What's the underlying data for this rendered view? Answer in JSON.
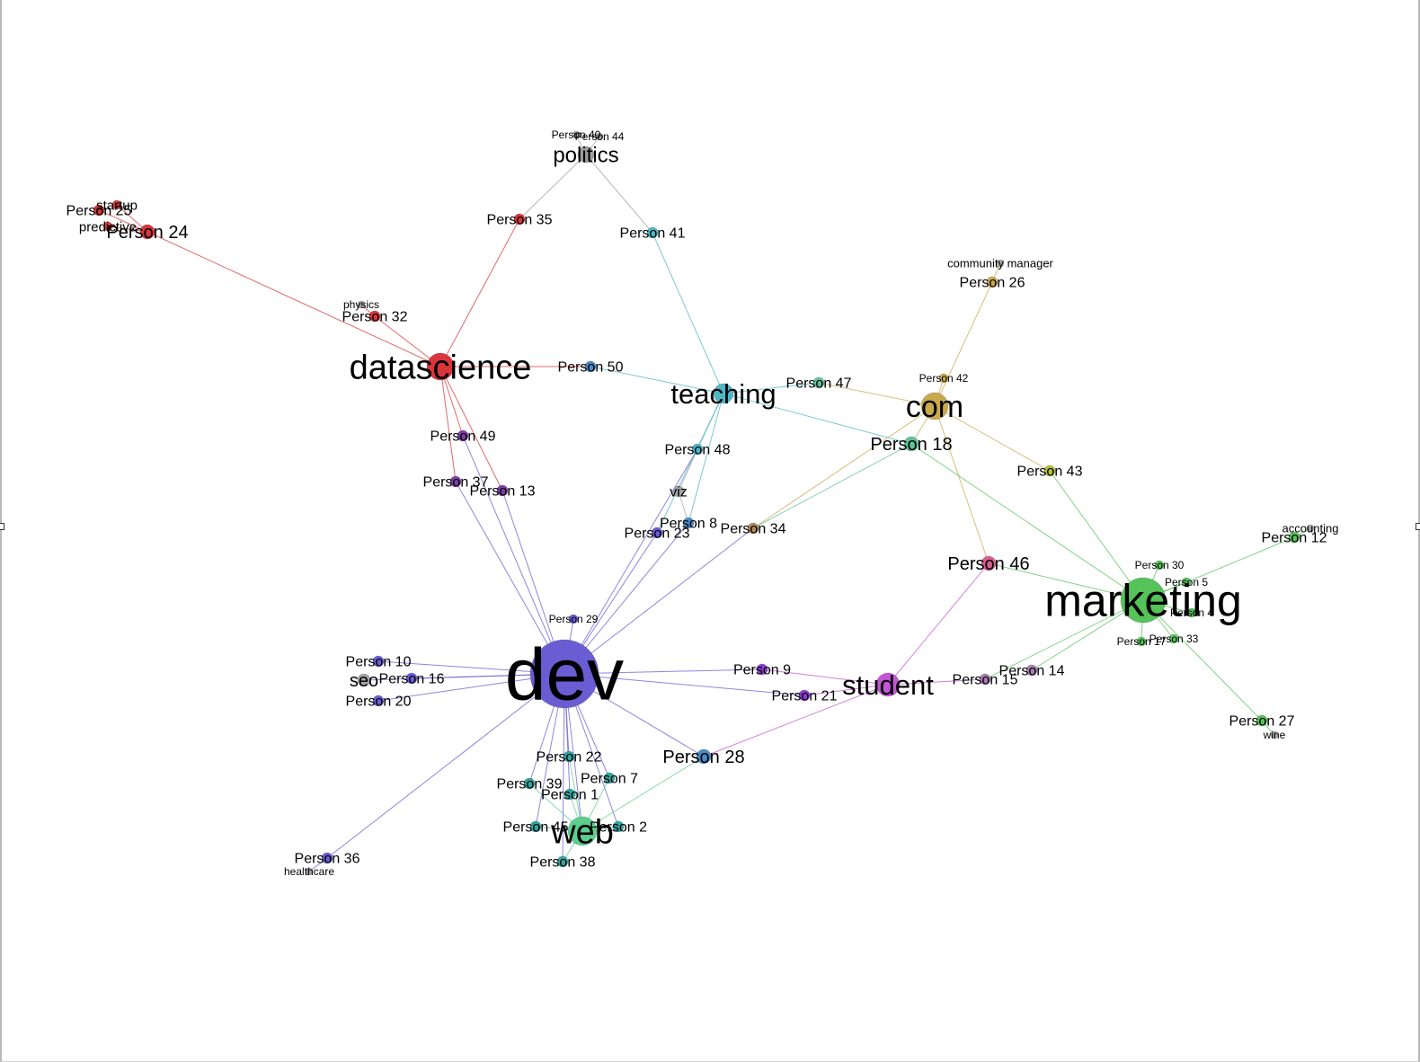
{
  "colors": {
    "dev": "#6a5cd3",
    "datascience": "#d9363b",
    "marketing": "#55c35a",
    "com": "#c8a94c",
    "teaching": "#4fb6c6",
    "student": "#c455d6",
    "web": "#5ccf8f",
    "politics": "#9e9e9e",
    "gray": "#a6a6a6",
    "purple": "#7d3fa8",
    "teal": "#2fa6a0",
    "steelblue": "#4a8bc9",
    "olive": "#b6c33a",
    "pink": "#d95f8e",
    "mauve": "#a77fb0",
    "tan": "#b08a5c",
    "seagreen": "#5fc49a",
    "violet": "#8d3ad1"
  },
  "nodes": [
    {
      "id": "dev",
      "label": "dev",
      "color": "dev"
    },
    {
      "id": "datascience",
      "label": "datascience",
      "color": "datascience"
    },
    {
      "id": "marketing",
      "label": "marketing",
      "color": "marketing"
    },
    {
      "id": "com",
      "label": "com",
      "color": "com"
    },
    {
      "id": "teaching",
      "label": "teaching",
      "color": "teaching"
    },
    {
      "id": "student",
      "label": "student",
      "color": "student"
    },
    {
      "id": "web",
      "label": "web",
      "color": "web"
    },
    {
      "id": "politics",
      "label": "politics",
      "color": "politics"
    },
    {
      "id": "seo",
      "label": "seo",
      "color": "gray"
    },
    {
      "id": "viz",
      "label": "viz",
      "color": "gray"
    },
    {
      "id": "startup",
      "label": "startup",
      "color": "datascience"
    },
    {
      "id": "predictive",
      "label": "predictive",
      "color": "datascience"
    },
    {
      "id": "physics",
      "label": "physics",
      "color": "gray"
    },
    {
      "id": "community_manager",
      "label": "community manager",
      "color": "gray"
    },
    {
      "id": "accounting",
      "label": "accounting",
      "color": "gray"
    },
    {
      "id": "wine",
      "label": "wine",
      "color": "gray"
    },
    {
      "id": "healthcare",
      "label": "healthcare",
      "color": "gray"
    },
    {
      "id": "p1",
      "label": "Person 1",
      "color": "teal"
    },
    {
      "id": "p2",
      "label": "Person 2",
      "color": "teal"
    },
    {
      "id": "p4",
      "label": "Person 4",
      "color": "marketing"
    },
    {
      "id": "p5",
      "label": "Person 5",
      "color": "marketing"
    },
    {
      "id": "p7",
      "label": "Person 7",
      "color": "teal"
    },
    {
      "id": "p8",
      "label": "Person 8",
      "color": "steelblue"
    },
    {
      "id": "p9",
      "label": "Person 9",
      "color": "violet"
    },
    {
      "id": "p10",
      "label": "Person 10",
      "color": "dev"
    },
    {
      "id": "p12",
      "label": "Person 12",
      "color": "marketing"
    },
    {
      "id": "p13",
      "label": "Person 13",
      "color": "purple"
    },
    {
      "id": "p14",
      "label": "Person 14",
      "color": "mauve"
    },
    {
      "id": "p15",
      "label": "Person 15",
      "color": "mauve"
    },
    {
      "id": "p16",
      "label": "Person 16",
      "color": "dev"
    },
    {
      "id": "p17",
      "label": "Person 17",
      "color": "marketing"
    },
    {
      "id": "p18",
      "label": "Person 18",
      "color": "seagreen"
    },
    {
      "id": "p20",
      "label": "Person 20",
      "color": "dev"
    },
    {
      "id": "p21",
      "label": "Person 21",
      "color": "violet"
    },
    {
      "id": "p22",
      "label": "Person 22",
      "color": "teal"
    },
    {
      "id": "p23",
      "label": "Person 23",
      "color": "dev"
    },
    {
      "id": "p24",
      "label": "Person 24",
      "color": "datascience"
    },
    {
      "id": "p25",
      "label": "Person 25",
      "color": "datascience"
    },
    {
      "id": "p26",
      "label": "Person 26",
      "color": "com"
    },
    {
      "id": "p27",
      "label": "Person 27",
      "color": "marketing"
    },
    {
      "id": "p28",
      "label": "Person 28",
      "color": "steelblue"
    },
    {
      "id": "p29",
      "label": "Person 29",
      "color": "dev"
    },
    {
      "id": "p30",
      "label": "Person 30",
      "color": "marketing"
    },
    {
      "id": "p32",
      "label": "Person 32",
      "color": "datascience"
    },
    {
      "id": "p33",
      "label": "Person 33",
      "color": "marketing"
    },
    {
      "id": "p34",
      "label": "Person 34",
      "color": "tan"
    },
    {
      "id": "p35",
      "label": "Person 35",
      "color": "datascience"
    },
    {
      "id": "p36",
      "label": "Person 36",
      "color": "dev"
    },
    {
      "id": "p37",
      "label": "Person 37",
      "color": "purple"
    },
    {
      "id": "p38",
      "label": "Person 38",
      "color": "teal"
    },
    {
      "id": "p39",
      "label": "Person 39",
      "color": "teal"
    },
    {
      "id": "p40",
      "label": "Person 40",
      "color": "gray"
    },
    {
      "id": "p41",
      "label": "Person 41",
      "color": "teaching"
    },
    {
      "id": "p42",
      "label": "Person 42",
      "color": "com"
    },
    {
      "id": "p43",
      "label": "Person 43",
      "color": "olive"
    },
    {
      "id": "p44",
      "label": "Person 44",
      "color": "gray"
    },
    {
      "id": "p45",
      "label": "Person 45",
      "color": "teal"
    },
    {
      "id": "p46",
      "label": "Person 46",
      "color": "pink"
    },
    {
      "id": "p47",
      "label": "Person 47",
      "color": "seagreen"
    },
    {
      "id": "p48",
      "label": "Person 48",
      "color": "teaching"
    },
    {
      "id": "p49",
      "label": "Person 49",
      "color": "purple"
    },
    {
      "id": "p50",
      "label": "Person 50",
      "color": "steelblue"
    }
  ],
  "edges": [
    [
      "dev",
      "p29"
    ],
    [
      "dev",
      "p10"
    ],
    [
      "dev",
      "p16"
    ],
    [
      "dev",
      "p20"
    ],
    [
      "dev",
      "seo"
    ],
    [
      "dev",
      "p36"
    ],
    [
      "dev",
      "p22"
    ],
    [
      "dev",
      "p39"
    ],
    [
      "dev",
      "p1"
    ],
    [
      "dev",
      "p7"
    ],
    [
      "dev",
      "p45"
    ],
    [
      "dev",
      "p2"
    ],
    [
      "dev",
      "p38"
    ],
    [
      "dev",
      "web"
    ],
    [
      "dev",
      "p28"
    ],
    [
      "dev",
      "p9"
    ],
    [
      "dev",
      "p21"
    ],
    [
      "dev",
      "p34"
    ],
    [
      "dev",
      "p23"
    ],
    [
      "dev",
      "p8"
    ],
    [
      "dev",
      "p48"
    ],
    [
      "dev",
      "p37"
    ],
    [
      "dev",
      "p13"
    ],
    [
      "dev",
      "p49"
    ],
    [
      "datascience",
      "p37"
    ],
    [
      "datascience",
      "p13"
    ],
    [
      "datascience",
      "p49"
    ],
    [
      "datascience",
      "p24"
    ],
    [
      "datascience",
      "p32"
    ],
    [
      "datascience",
      "p35"
    ],
    [
      "datascience",
      "p50"
    ],
    [
      "p24",
      "p25"
    ],
    [
      "p24",
      "startup"
    ],
    [
      "p24",
      "predictive"
    ],
    [
      "p32",
      "physics"
    ],
    [
      "politics",
      "p35"
    ],
    [
      "politics",
      "p41"
    ],
    [
      "politics",
      "p40"
    ],
    [
      "politics",
      "p44"
    ],
    [
      "teaching",
      "p41"
    ],
    [
      "teaching",
      "p50"
    ],
    [
      "teaching",
      "p47"
    ],
    [
      "teaching",
      "p18"
    ],
    [
      "teaching",
      "p48"
    ],
    [
      "teaching",
      "p8"
    ],
    [
      "teaching",
      "p23"
    ],
    [
      "viz",
      "p48"
    ],
    [
      "viz",
      "p8"
    ],
    [
      "com",
      "p42"
    ],
    [
      "com",
      "p26"
    ],
    [
      "com",
      "p47"
    ],
    [
      "com",
      "p18"
    ],
    [
      "com",
      "p43"
    ],
    [
      "com",
      "p46"
    ],
    [
      "com",
      "p34"
    ],
    [
      "p26",
      "community_manager"
    ],
    [
      "marketing",
      "p18"
    ],
    [
      "marketing",
      "p43"
    ],
    [
      "marketing",
      "p46"
    ],
    [
      "marketing",
      "p12"
    ],
    [
      "marketing",
      "p30"
    ],
    [
      "marketing",
      "p5"
    ],
    [
      "marketing",
      "p4"
    ],
    [
      "marketing",
      "p33"
    ],
    [
      "marketing",
      "p17"
    ],
    [
      "marketing",
      "p27"
    ],
    [
      "marketing",
      "p14"
    ],
    [
      "marketing",
      "p15"
    ],
    [
      "p12",
      "accounting"
    ],
    [
      "p27",
      "wine"
    ],
    [
      "student",
      "p9"
    ],
    [
      "student",
      "p21"
    ],
    [
      "student",
      "p46"
    ],
    [
      "student",
      "p15"
    ],
    [
      "student",
      "p28"
    ],
    [
      "web",
      "p28"
    ],
    [
      "web",
      "p1"
    ],
    [
      "web",
      "p22"
    ],
    [
      "web",
      "p7"
    ],
    [
      "web",
      "p39"
    ],
    [
      "web",
      "p45"
    ],
    [
      "web",
      "p2"
    ],
    [
      "web",
      "p38"
    ],
    [
      "p36",
      "healthcare"
    ],
    [
      "p18",
      "p34"
    ]
  ]
}
